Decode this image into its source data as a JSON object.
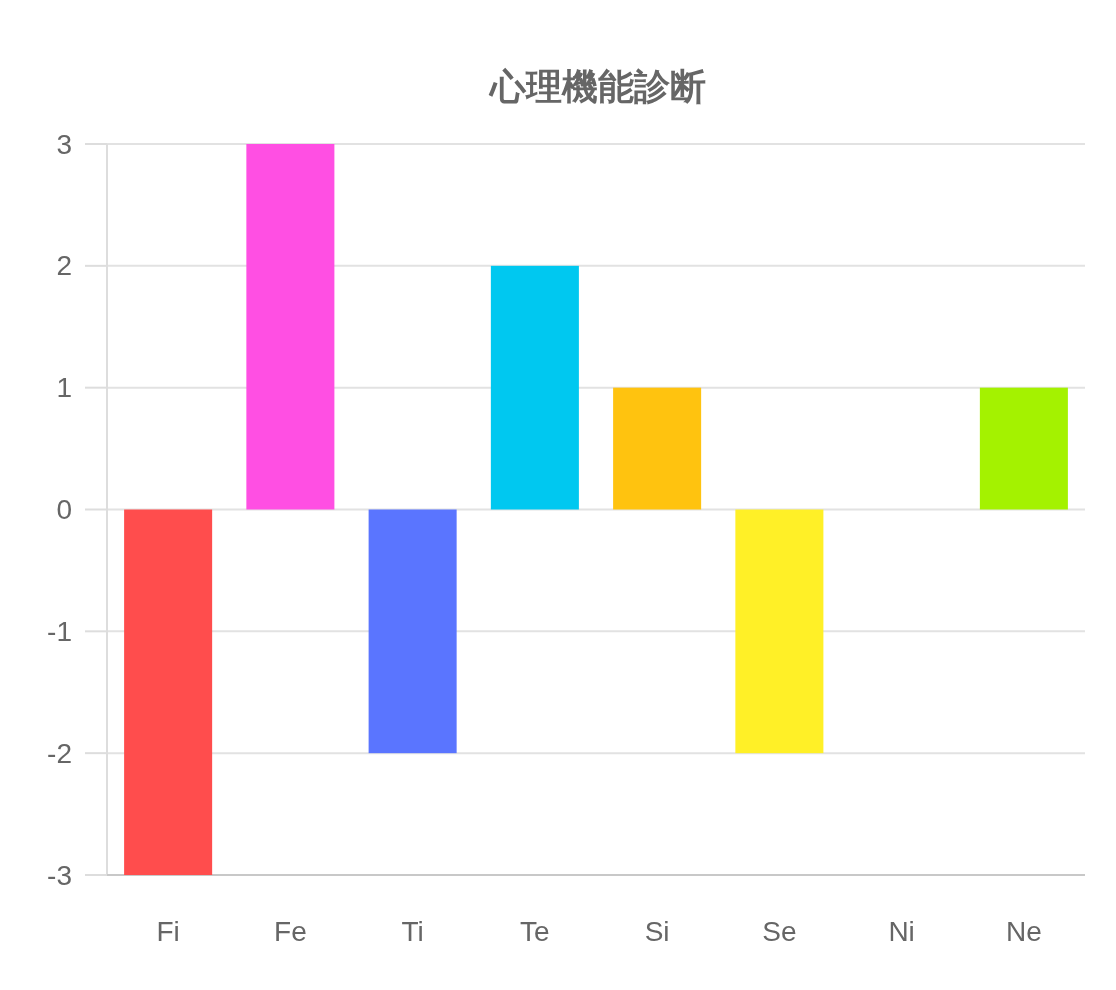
{
  "chart_data": {
    "type": "bar",
    "title": "心理機能診断",
    "categories": [
      "Fi",
      "Fe",
      "Ti",
      "Te",
      "Si",
      "Se",
      "Ni",
      "Ne"
    ],
    "values": [
      -3,
      3,
      -2,
      2,
      1,
      -2,
      0,
      1
    ],
    "colors": [
      "#ff4d4d",
      "#ff4fe3",
      "#5a75ff",
      "#00c8f0",
      "#ffc30f",
      "#fff027",
      null,
      "#a4f200"
    ],
    "ylim": [
      -3,
      3
    ],
    "yticks": [
      -3,
      -2,
      -1,
      0,
      1,
      2,
      3
    ],
    "grid": "y"
  }
}
